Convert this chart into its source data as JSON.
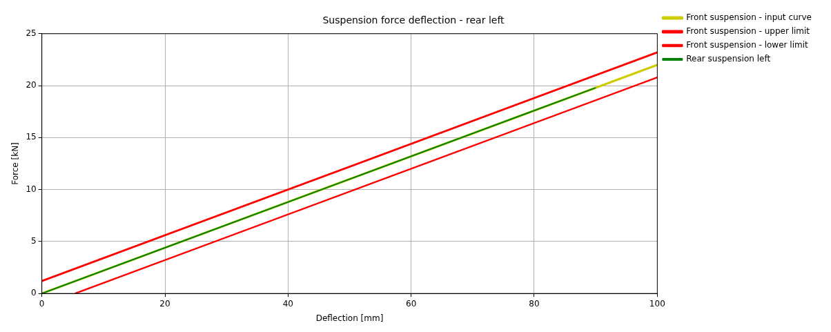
{
  "chart_data": {
    "type": "line",
    "title": "Suspension force deflection - rear left",
    "xlabel": "Deflection [mm]",
    "ylabel": "Force [kN]",
    "xlim": [
      0,
      100
    ],
    "xticks": [
      0,
      20,
      40,
      60,
      80,
      100
    ],
    "ylim": [
      0,
      25
    ],
    "yticks": [
      0,
      5,
      10,
      15,
      20,
      25
    ],
    "grid": true,
    "legend": "top right",
    "marker": "none",
    "line_style": "solid",
    "series": [
      {
        "name": "Front suspension - input curve",
        "color": "#cccc00",
        "x": [
          0,
          100
        ],
        "values": [
          0,
          22
        ]
      },
      {
        "name": "Front suspension - upper limit",
        "color": "#ff0000",
        "x": [
          0,
          100
        ],
        "values": [
          1.2,
          23.2
        ]
      },
      {
        "name": "Front suspension - lower limit",
        "color": "#ff0000",
        "x": [
          5.4,
          100
        ],
        "values": [
          0,
          20.8
        ]
      },
      {
        "name": "Rear suspension left",
        "color": "#008000",
        "x": [
          0,
          90
        ],
        "values": [
          0,
          19.8
        ]
      }
    ]
  }
}
